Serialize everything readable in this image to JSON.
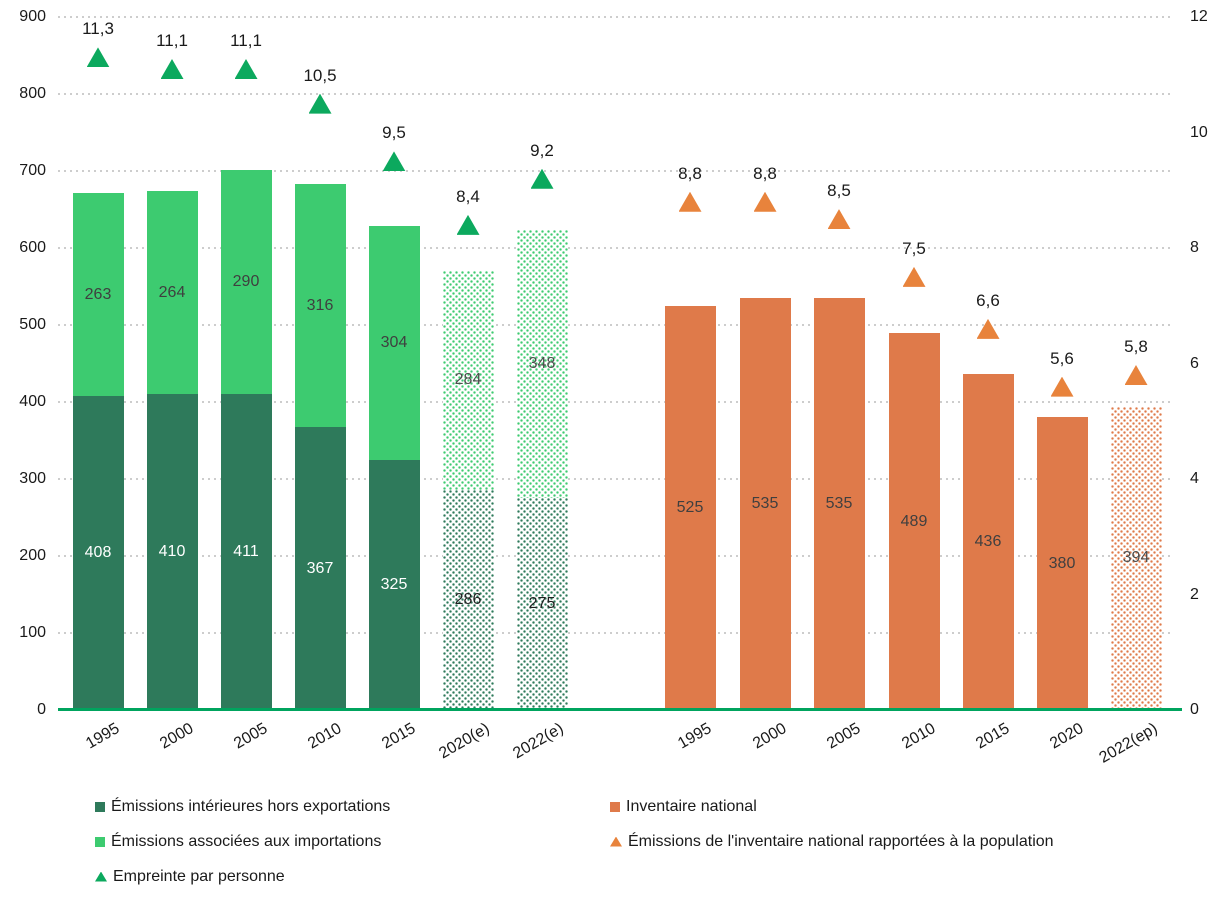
{
  "page": {
    "background": "#FFFFFF"
  },
  "colors": {
    "dark_green": "#2E7A5B",
    "light_green": "#3DCB70",
    "green_marker": "#0CA95E",
    "orange_bar": "#DF7A4A",
    "orange_marker": "#E8833C",
    "axis_baseline": "#00A45E",
    "gridline": "#CDCDCD",
    "axis_text": "#1A1A1A",
    "label_on_dark": "#FFFFFF",
    "label_on_light": "#3F3F3F",
    "label_on_pattern_dark": "#1F1F1F",
    "label_on_pattern_light": "#4D4D4D"
  },
  "chart_data": {
    "type": "bar",
    "subtype": "two bar groups (one stacked) with triangle point markers on secondary axis",
    "grid": "horizontal dotted lines at left-axis steps of 100",
    "legend_position": "bottom, two columns",
    "left_axis": {
      "min": 0,
      "max": 900,
      "step": 100,
      "ticks": [
        "900",
        "800",
        "700",
        "600",
        "500",
        "400",
        "300",
        "200",
        "100",
        "0"
      ]
    },
    "right_axis": {
      "min": 0,
      "max": 12,
      "step": 2,
      "ticks": [
        "12",
        "10",
        "8",
        "6",
        "4",
        "2",
        "0"
      ]
    },
    "groups": [
      {
        "name": "empreinte-carbone",
        "categories": [
          "1995",
          "2000",
          "2005",
          "2010",
          "2015",
          "2020(e)",
          "2022(e)"
        ],
        "estimated": [
          false,
          false,
          false,
          false,
          false,
          true,
          true
        ],
        "series": [
          {
            "name": "Émissions intérieures hors exportations",
            "color": "#2E7A5B",
            "pattern_class": "pat-darkgreen",
            "values": [
              408,
              410,
              411,
              367,
              325,
              286,
              275
            ],
            "labels": [
              "408",
              "410",
              "411",
              "367",
              "325",
              "286",
              "275"
            ],
            "label_color": "#FFFFFF",
            "estimated_label_color": "#1F1F1F"
          },
          {
            "name": "Émissions associées aux importations",
            "color": "#3DCB70",
            "pattern_class": "pat-lightgreen",
            "values": [
              263,
              264,
              290,
              316,
              304,
              284,
              348
            ],
            "labels": [
              "263",
              "264",
              "290",
              "316",
              "304",
              "284",
              "348"
            ],
            "label_color": "#3F3F3F",
            "estimated_label_color": "#4D4D4D"
          }
        ],
        "markers": {
          "name": "Empreinte par personne",
          "color": "#0CA95E",
          "values": [
            11.3,
            11.1,
            11.1,
            10.5,
            9.5,
            8.4,
            9.2
          ],
          "labels": [
            "11,3",
            "11,1",
            "11,1",
            "10,5",
            "9,5",
            "8,4",
            "9,2"
          ]
        }
      },
      {
        "name": "inventaire-national",
        "categories": [
          "1995",
          "2000",
          "2005",
          "2010",
          "2015",
          "2020",
          "2022(ep)"
        ],
        "estimated": [
          false,
          false,
          false,
          false,
          false,
          false,
          true
        ],
        "series": [
          {
            "name": "Inventaire national",
            "color": "#DF7A4A",
            "pattern_class": "pat-orange",
            "values": [
              525,
              535,
              535,
              489,
              436,
              380,
              394
            ],
            "labels": [
              "525",
              "535",
              "535",
              "489",
              "436",
              "380",
              "394"
            ],
            "label_color": "#3F3F3F",
            "estimated_label_color": "#4D4D4D"
          }
        ],
        "markers": {
          "name": "Émissions de l'inventaire national rapportées à la population",
          "color": "#E8833C",
          "values": [
            8.8,
            8.8,
            8.5,
            7.5,
            6.6,
            5.6,
            5.8
          ],
          "labels": [
            "8,8",
            "8,8",
            "8,5",
            "7,5",
            "6,6",
            "5,6",
            "5,8"
          ]
        }
      }
    ],
    "legend": {
      "columns": [
        {
          "x": 95,
          "rows": [
            {
              "marker": "square",
              "color": "#2E7A5B",
              "label": "Émissions intérieures hors exportations"
            },
            {
              "marker": "square",
              "color": "#3DCB70",
              "label": "Émissions associées aux importations"
            },
            {
              "marker": "triangle",
              "color": "#0CA95E",
              "label": "Empreinte par personne"
            }
          ]
        },
        {
          "x": 610,
          "rows": [
            {
              "marker": "square",
              "color": "#DF7A4A",
              "label": "Inventaire national"
            },
            {
              "marker": "triangle",
              "color": "#E8833C",
              "label": "Émissions de l'inventaire national rapportées à la population"
            }
          ]
        }
      ]
    }
  }
}
